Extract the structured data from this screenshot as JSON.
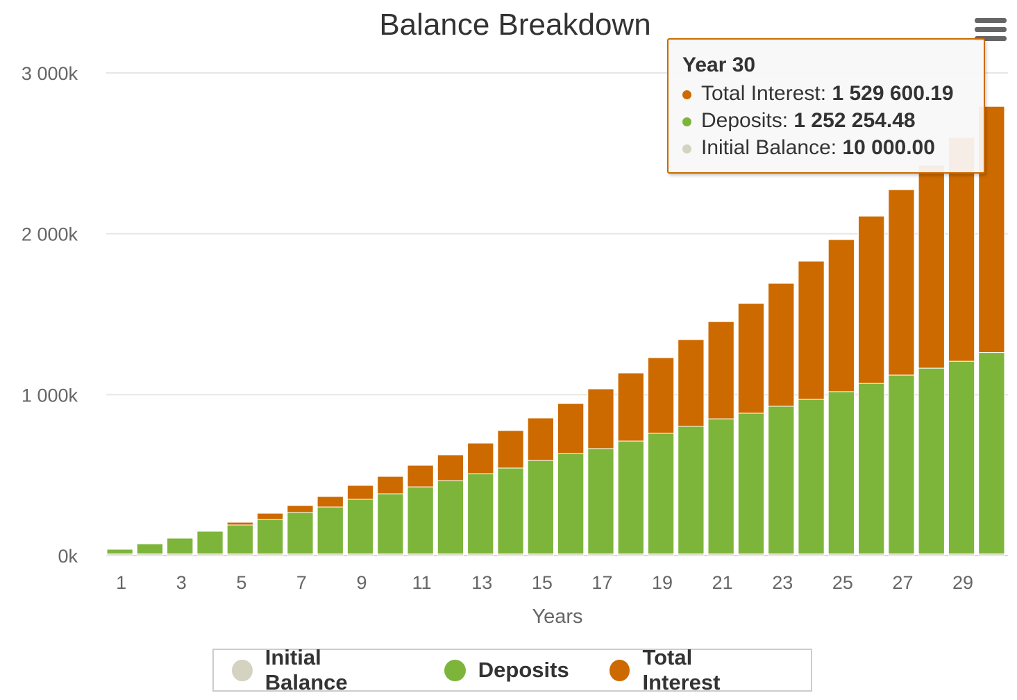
{
  "chart_data": {
    "type": "bar",
    "stacked": true,
    "title": "Balance Breakdown",
    "xlabel": "Years",
    "ylabel": "",
    "ylim": [
      0,
      3000000
    ],
    "yticks": [
      {
        "v": 0,
        "label": "0k"
      },
      {
        "v": 1000000,
        "label": "1 000k"
      },
      {
        "v": 2000000,
        "label": "2 000k"
      },
      {
        "v": 3000000,
        "label": "3 000k"
      }
    ],
    "xtick_labels": [
      "1",
      "3",
      "5",
      "7",
      "9",
      "11",
      "13",
      "15",
      "17",
      "19",
      "21",
      "23",
      "25",
      "27",
      "29"
    ],
    "categories": [
      1,
      2,
      3,
      4,
      5,
      6,
      7,
      8,
      9,
      10,
      11,
      12,
      13,
      14,
      15,
      16,
      17,
      18,
      19,
      20,
      21,
      22,
      23,
      24,
      25,
      26,
      27,
      28,
      29,
      30
    ],
    "series": [
      {
        "name": "Initial Balance",
        "color": "#d4d2c0",
        "values": [
          10000,
          10000,
          10000,
          10000,
          10000,
          10000,
          10000,
          10000,
          10000,
          10000,
          10000,
          10000,
          10000,
          10000,
          10000,
          10000,
          10000,
          10000,
          10000,
          10000,
          10000,
          10000,
          10000,
          10000,
          10000,
          10000,
          10000,
          10000,
          10000,
          10000
        ]
      },
      {
        "name": "Deposits",
        "color": "#7db53b",
        "values": [
          29000,
          63000,
          98000,
          141000,
          180000,
          214000,
          258000,
          292000,
          340000,
          374000,
          417000,
          456000,
          499000,
          534000,
          581000,
          624000,
          655000,
          702000,
          750000,
          793000,
          840000,
          875000,
          918000,
          961000,
          1009000,
          1060000,
          1112000,
          1155000,
          1198000,
          1252254.48
        ]
      },
      {
        "name": "Total Interest",
        "color": "#cc6a00",
        "values": [
          0,
          0,
          0,
          0,
          17000,
          39000,
          43000,
          65000,
          86000,
          108000,
          134000,
          160000,
          190000,
          233000,
          264000,
          311000,
          371000,
          423000,
          470000,
          539000,
          604000,
          682000,
          764000,
          859000,
          945000,
          1040000,
          1152000,
          1261000,
          1390000,
          1529600.19
        ]
      }
    ],
    "legend": "bottom-center",
    "grid": true
  },
  "tooltip": {
    "header": "Year 30",
    "rows": [
      {
        "label": "Total Interest: ",
        "value": "1 529 600.19",
        "color": "#cc6a00"
      },
      {
        "label": "Deposits: ",
        "value": "1 252 254.48",
        "color": "#7db53b"
      },
      {
        "label": "Initial Balance: ",
        "value": "10 000.00",
        "color": "#d4d2c0"
      }
    ]
  },
  "menu_icon": "hamburger-menu-icon"
}
